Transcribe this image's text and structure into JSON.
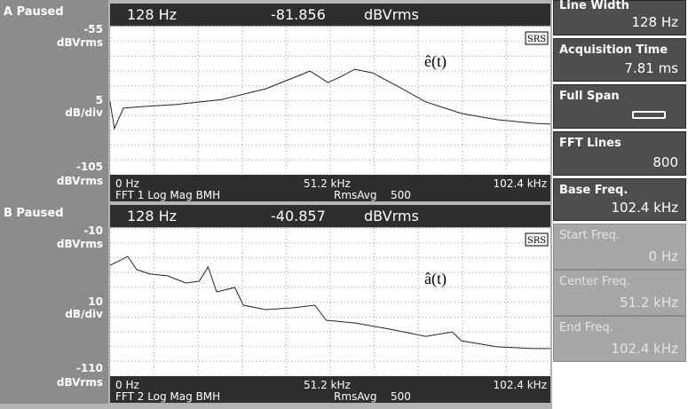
{
  "panels": [
    {
      "status": "A Paused",
      "header": {
        "freq": "128 Hz",
        "reading": -81.856,
        "unit": "dBVrms"
      },
      "scale": {
        "top": -55,
        "top_unit": "dBVrms",
        "div": 5,
        "div_unit": "dB/div",
        "bottom": -105,
        "bottom_unit": "dBVrms"
      },
      "x_labels": [
        "0 Hz",
        "51.2 kHz",
        "102.4 kHz"
      ],
      "xlim": [
        0,
        102.4
      ],
      "footer": {
        "measurement": "FFT 1 Log Mag BMH",
        "averaging": "RmsAvg",
        "count": 500
      },
      "logo": "SRS",
      "annotation": "ê(t)",
      "trace": {
        "x": [
          0,
          1.0,
          3.1,
          7.2,
          15.5,
          25.9,
          36.2,
          42.4,
          46.5,
          50.7,
          53.8,
          56.9,
          61.0,
          67.2,
          73.4,
          81.7,
          90.0,
          98.3,
          102.4
        ],
        "values": [
          -80.4,
          -89.4,
          -82.5,
          -82,
          -81.3,
          -79.6,
          -76,
          -72.4,
          -70,
          -73.9,
          -71.8,
          -69.4,
          -70.6,
          -75.4,
          -80.4,
          -84.3,
          -86.4,
          -87.6,
          -87.9
        ]
      }
    },
    {
      "status": "B Paused",
      "header": {
        "freq": "128 Hz",
        "reading": -40.857,
        "unit": "dBVrms"
      },
      "scale": {
        "top": -10,
        "top_unit": "dBVrms",
        "div": 10,
        "div_unit": "dB/div",
        "bottom": -110,
        "bottom_unit": "dBVrms"
      },
      "x_labels": [
        "0 Hz",
        "51.2 kHz",
        "102.4 kHz"
      ],
      "xlim": [
        0,
        102.4
      ],
      "footer": {
        "measurement": "FFT 2 Log Mag BMH",
        "averaging": "RmsAvg",
        "count": 500
      },
      "logo": "SRS",
      "annotation": "â(t)",
      "trace": {
        "x": [
          0,
          2.1,
          4.1,
          6.2,
          9.3,
          13.4,
          17.6,
          20.7,
          22.8,
          24.8,
          29.0,
          31.0,
          36.2,
          42.4,
          47.6,
          50.3,
          56.9,
          65.2,
          73.4,
          79.6,
          81.7,
          90.0,
          98.3,
          102.4
        ],
        "values": [
          -35.1,
          -32.2,
          -29.2,
          -38.1,
          -41.1,
          -42.3,
          -47.1,
          -45.9,
          -36.3,
          -53.1,
          -50.1,
          -62.1,
          -65.1,
          -63.9,
          -62.1,
          -72.3,
          -74.1,
          -78.3,
          -83.1,
          -80.1,
          -86.1,
          -90.2,
          -91.4,
          -91.4
        ]
      }
    }
  ],
  "sidebar": [
    {
      "label": "Line Width",
      "value": "128 Hz"
    },
    {
      "label": "Acquisition Time",
      "value": "7.81 ms"
    },
    {
      "label": "Full Span"
    },
    {
      "label": "FFT Lines",
      "value": 800
    },
    {
      "label": "Base Freq.",
      "value": "102.4 kHz"
    },
    {
      "label": "Start Freq.",
      "value": "0 Hz"
    },
    {
      "label": "Center Freq.",
      "value": "51.2 kHz"
    },
    {
      "label": "End Freq.",
      "value": "102.4 kHz"
    }
  ]
}
